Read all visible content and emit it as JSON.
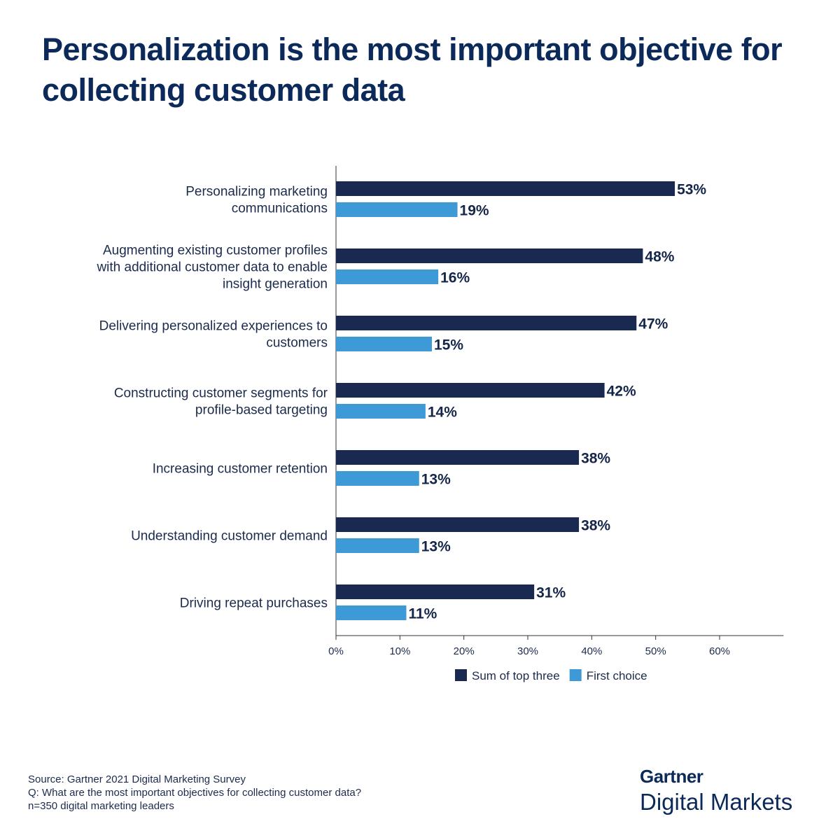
{
  "title": "Personalization is the most important objective for collecting customer data",
  "chart_data": {
    "type": "bar",
    "orientation": "horizontal",
    "categories": [
      [
        "Personalizing marketing",
        "communications"
      ],
      [
        "Augmenting existing customer profiles",
        "with additional customer data to enable",
        "insight generation"
      ],
      [
        "Delivering personalized experiences to",
        "customers"
      ],
      [
        "Constructing customer segments for",
        "profile-based targeting"
      ],
      [
        "Increasing customer retention"
      ],
      [
        "Understanding customer demand"
      ],
      [
        "Driving repeat purchases"
      ]
    ],
    "series": [
      {
        "name": "Sum of top three",
        "color": "#19294f",
        "values": [
          53,
          48,
          47,
          42,
          38,
          38,
          31
        ]
      },
      {
        "name": "First choice",
        "color": "#3d9ad6",
        "values": [
          19,
          16,
          15,
          14,
          13,
          13,
          11
        ]
      }
    ],
    "xticks": [
      "0%",
      "10%",
      "20%",
      "30%",
      "40%",
      "50%",
      "60%"
    ],
    "xlim": [
      0,
      70
    ],
    "grid": false,
    "legend": "bottom",
    "value_suffix": "%"
  },
  "footer": {
    "source": "Source: Gartner 2021 Digital Marketing Survey",
    "question": "Q: What are the most important objectives for collecting customer data?",
    "sample": "n=350 digital marketing leaders"
  },
  "logo": {
    "brand": "Gartner",
    "product": "Digital Markets"
  }
}
